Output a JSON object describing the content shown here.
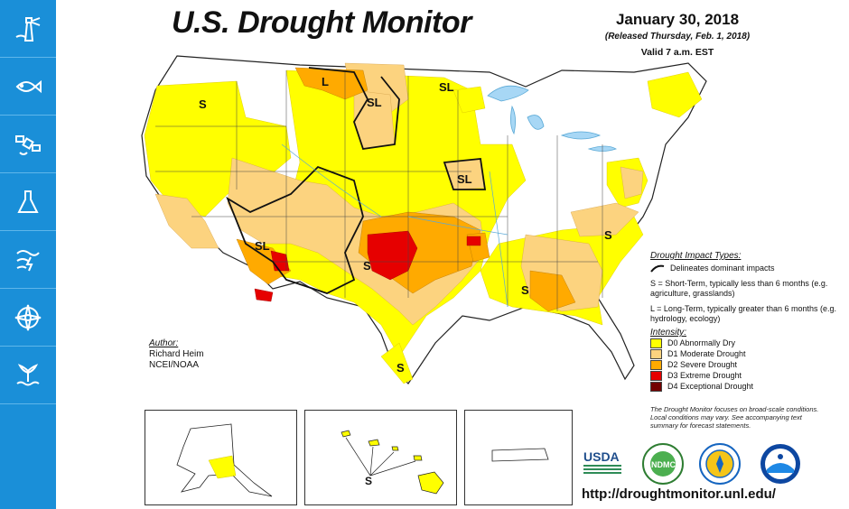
{
  "sidebar": {
    "items": [
      {
        "icon": "lighthouse-icon"
      },
      {
        "icon": "fish-icon"
      },
      {
        "icon": "satellite-icon"
      },
      {
        "icon": "flask-icon"
      },
      {
        "icon": "storm-icon"
      },
      {
        "icon": "compass-icon"
      },
      {
        "icon": "whale-tail-icon"
      }
    ]
  },
  "map": {
    "title": "U.S. Drought Monitor",
    "date": "January 30, 2018",
    "released": "(Released Thursday, Feb. 1, 2018)",
    "valid": "Valid 7 a.m. EST",
    "region_labels": [
      "S",
      "L",
      "SL",
      "SL",
      "SL",
      "SL",
      "S",
      "S",
      "S",
      "S"
    ],
    "inset_label": "S",
    "author": {
      "heading": "Author:",
      "name": "Richard Heim",
      "org": "NCEI/NOAA"
    },
    "legend": {
      "impact_heading": "Drought Impact Types:",
      "delineates": "Delineates dominant impacts",
      "short_term": "S = Short-Term, typically less than 6 months (e.g. agriculture, grasslands)",
      "long_term": "L = Long-Term, typically greater than 6 months (e.g. hydrology, ecology)",
      "intensity_heading": "Intensity:",
      "categories": [
        {
          "label": "D0 Abnormally Dry",
          "color": "#ffff00"
        },
        {
          "label": "D1 Moderate Drought",
          "color": "#fcd37f"
        },
        {
          "label": "D2 Severe Drought",
          "color": "#ffaa00"
        },
        {
          "label": "D3 Extreme Drought",
          "color": "#e60000"
        },
        {
          "label": "D4 Exceptional Drought",
          "color": "#730000"
        }
      ]
    },
    "note": "The Drought Monitor focuses on broad-scale conditions. Local conditions may vary. See accompanying text summary for forecast statements.",
    "logos": {
      "usda": "USDA",
      "ndmc": "NDMC"
    },
    "url": "http://droughtmonitor.unl.edu/"
  }
}
